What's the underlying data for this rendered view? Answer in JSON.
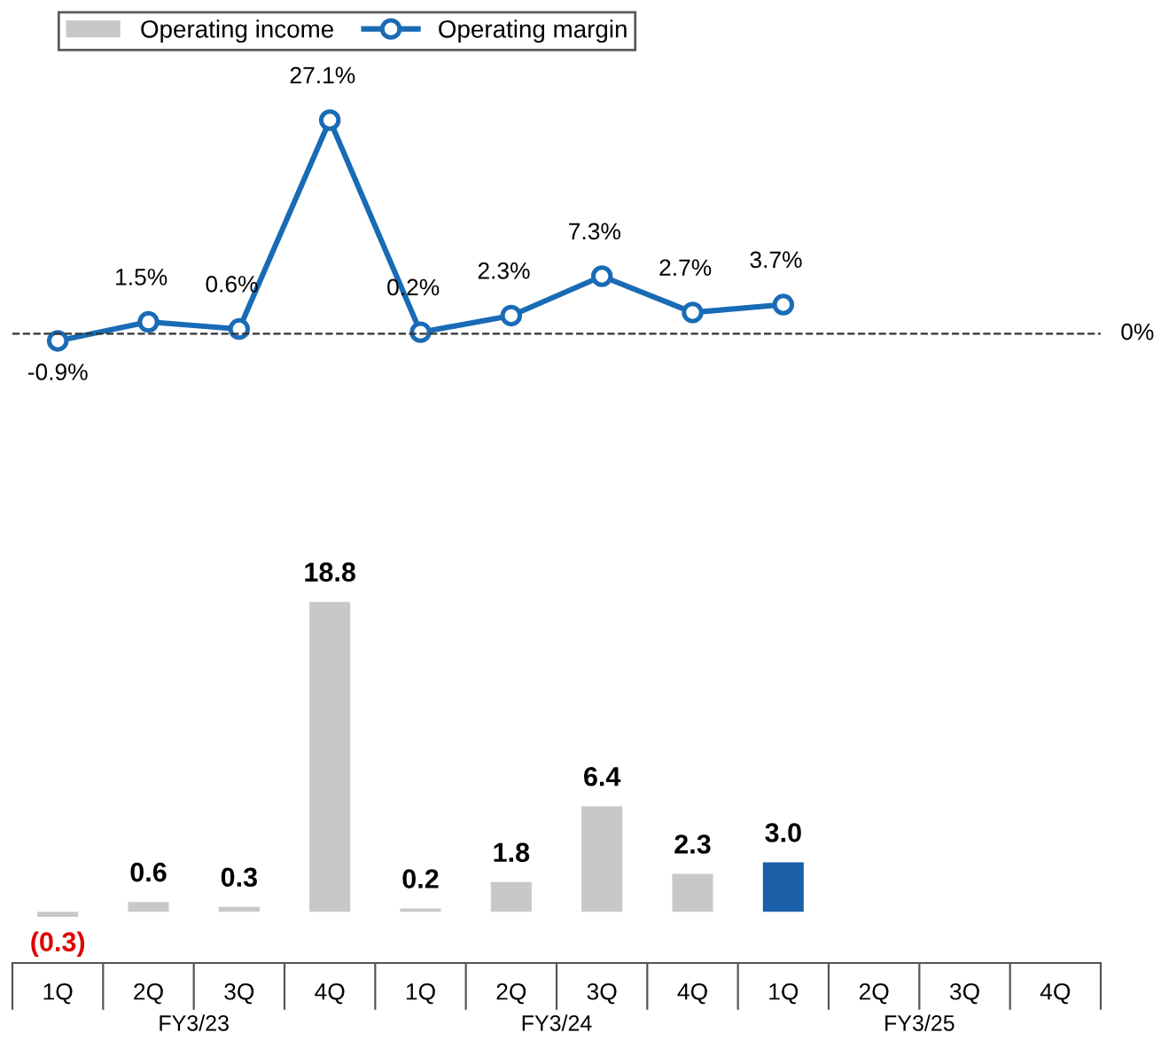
{
  "chart_data": [
    {
      "type": "line",
      "categories": [
        null,
        null,
        null,
        null,
        null,
        null,
        null,
        null,
        null,
        null,
        null,
        null
      ],
      "series": [
        {
          "name": "Operating margin",
          "color": "#1a6bb5",
          "values": [
            -0.9,
            1.5,
            0.6,
            27.1,
            0.2,
            2.3,
            7.3,
            2.7,
            3.7,
            null,
            null,
            null
          ],
          "value_labels": [
            "-0.9%",
            "1.5%",
            "0.6%",
            "27.1%",
            "0.2%",
            "2.3%",
            "7.3%",
            "2.7%",
            "3.7%",
            null,
            null,
            null
          ]
        }
      ],
      "marker": "circle",
      "ref_lines": [
        {
          "axis": "y",
          "value": 0,
          "label": "0%",
          "line_style": "dashed",
          "color": "#333333"
        }
      ],
      "tick_labels": false,
      "legend": "top left",
      "grid": false
    },
    {
      "type": "bar",
      "categories": [
        "1Q",
        "2Q",
        "3Q",
        "4Q",
        "1Q",
        "2Q",
        "3Q",
        "4Q",
        "1Q",
        "2Q",
        "3Q",
        "4Q"
      ],
      "series": [
        {
          "name": "Operating income",
          "color": "#c8c8c8",
          "colors": [
            "#c8c8c8",
            "#c8c8c8",
            "#c8c8c8",
            "#c8c8c8",
            "#c8c8c8",
            "#c8c8c8",
            "#c8c8c8",
            "#c8c8c8",
            "#1a5fa8",
            null,
            null,
            null
          ],
          "values": [
            -0.3,
            0.6,
            0.3,
            18.8,
            0.2,
            1.8,
            6.4,
            2.3,
            3.0,
            null,
            null,
            null
          ],
          "value_labels": [
            "(0.3)",
            "0.6",
            "0.3",
            "18.8",
            "0.2",
            "1.8",
            "6.4",
            "2.3",
            "3.0",
            null,
            null,
            null
          ]
        }
      ],
      "annotations": [
        "FY3/23",
        "FY3/24",
        "FY3/25"
      ],
      "tick_labels": "x",
      "legend": "top left",
      "grid": false
    }
  ]
}
